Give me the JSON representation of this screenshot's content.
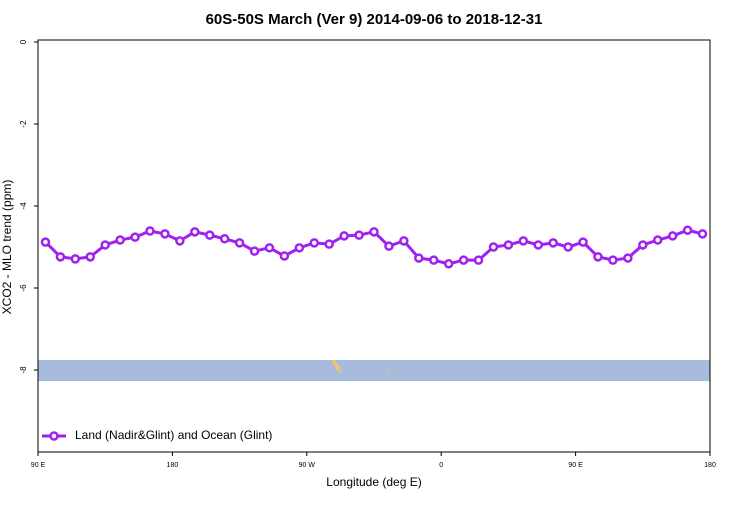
{
  "chart_data": {
    "type": "line",
    "title": "60S-50S March (Ver 9)   2014-09-06 to 2018-12-31",
    "x_label": "Longitude (deg E)",
    "y_label": "XCO2 - MLO trend (ppm)",
    "x": [
      95,
      105,
      115,
      125,
      135,
      145,
      155,
      165,
      175,
      185,
      195,
      205,
      215,
      225,
      235,
      245,
      255,
      265,
      275,
      285,
      295,
      305,
      315,
      325,
      335,
      345,
      355,
      365,
      375,
      385,
      395,
      405,
      415,
      425,
      435,
      445,
      455,
      465,
      475,
      485,
      495,
      505,
      515,
      525,
      535
    ],
    "series": [
      {
        "name": "Land (Nadir&Glint) and Ocean (Glint)",
        "color": "#a020f0",
        "values": [
          -4.88,
          -5.24,
          -5.29,
          -5.24,
          -4.95,
          -4.83,
          -4.76,
          -4.61,
          -4.68,
          -4.85,
          -4.63,
          -4.71,
          -4.8,
          -4.9,
          -5.1,
          -5.02,
          -5.22,
          -5.02,
          -4.9,
          -4.93,
          -4.73,
          -4.71,
          -4.63,
          -4.98,
          -4.85,
          -5.27,
          -5.32,
          -5.41,
          -5.32,
          -5.32,
          -5.0,
          -4.95,
          -4.85,
          -4.95,
          -4.9,
          -5.0,
          -4.88,
          -5.24,
          -5.32,
          -5.27,
          -4.95,
          -4.83,
          -4.73,
          -4.59,
          -4.68
        ]
      }
    ],
    "xlim": [
      90,
      540
    ],
    "xticks": [
      {
        "value": 90,
        "label": "90 E"
      },
      180,
      {
        "value": 270,
        "label": "90 W"
      },
      {
        "value": 360,
        "label": "0"
      },
      {
        "value": 450,
        "label": "90 E"
      },
      {
        "value": 540,
        "label": "180"
      }
    ],
    "ylim": [
      -10,
      0
    ],
    "yticks": [
      0,
      -2,
      -4,
      -6,
      -8
    ],
    "legend": "bottom-left"
  }
}
